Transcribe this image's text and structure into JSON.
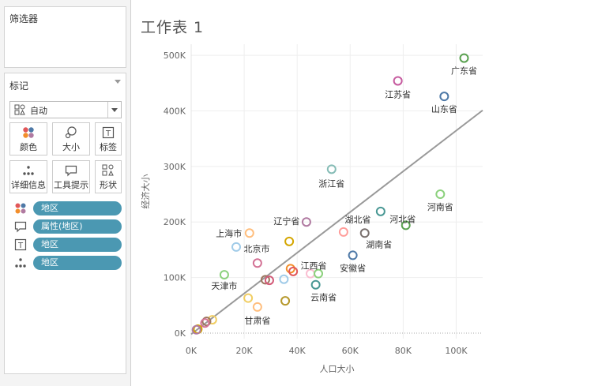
{
  "sheet_title": "工作表 1",
  "filters": {
    "title": "筛选器"
  },
  "marks": {
    "title": "标记",
    "mark_type": "自动",
    "buttons": {
      "color": "颜色",
      "size": "大小",
      "label": "标签",
      "detail": "详细信息",
      "tooltip": "工具提示",
      "shape": "形状"
    },
    "pills": [
      {
        "icon": "color-dots-icon",
        "label": "地区"
      },
      {
        "icon": "tooltip-icon",
        "label": "属性(地区)"
      },
      {
        "icon": "label-icon",
        "label": "地区"
      },
      {
        "icon": "detail-icon",
        "label": "地区"
      }
    ]
  },
  "chart_data": {
    "type": "scatter",
    "xlabel": "人口大小",
    "ylabel": "经济大小",
    "xlim": [
      0,
      110000
    ],
    "ylim": [
      -10000,
      520000
    ],
    "x_ticks": [
      {
        "value": 0,
        "label": "0K"
      },
      {
        "value": 20000,
        "label": "20K"
      },
      {
        "value": 40000,
        "label": "40K"
      },
      {
        "value": 60000,
        "label": "60K"
      },
      {
        "value": 80000,
        "label": "80K"
      },
      {
        "value": 100000,
        "label": "100K"
      }
    ],
    "y_ticks": [
      {
        "value": 0,
        "label": "0K"
      },
      {
        "value": 100000,
        "label": "100K"
      },
      {
        "value": 200000,
        "label": "200K"
      },
      {
        "value": 300000,
        "label": "300K"
      },
      {
        "value": 400000,
        "label": "400K"
      },
      {
        "value": 500000,
        "label": "500K"
      }
    ],
    "grid": true,
    "trend_line": {
      "x": [
        0,
        110000
      ],
      "y": [
        -2000,
        401000
      ],
      "color": "#999999"
    },
    "points": [
      {
        "x": 103000,
        "y": 495000,
        "label": "广东省",
        "color": "#59a14f"
      },
      {
        "x": 78000,
        "y": 454000,
        "label": "江苏省",
        "color": "#c65b9f"
      },
      {
        "x": 95500,
        "y": 426000,
        "label": "山东省",
        "color": "#4e79a7"
      },
      {
        "x": 53000,
        "y": 295000,
        "label": "浙江省",
        "color": "#86bcb6"
      },
      {
        "x": 94000,
        "y": 250000,
        "label": "河南省",
        "color": "#8cd17d"
      },
      {
        "x": 71500,
        "y": 219000,
        "label": "",
        "color": "#499894"
      },
      {
        "x": 81000,
        "y": 194000,
        "label": "河北省",
        "color": "#59a14f"
      },
      {
        "x": 43500,
        "y": 200000,
        "label": "辽宁省",
        "color": "#b07aa1"
      },
      {
        "x": 57500,
        "y": 182000,
        "label": "湖北省",
        "color": "#ff9d9a"
      },
      {
        "x": 65500,
        "y": 180000,
        "label": "湖南省",
        "color": "#79706e"
      },
      {
        "x": 22000,
        "y": 180000,
        "label": "上海市",
        "color": "#ffbe7d"
      },
      {
        "x": 17000,
        "y": 155000,
        "label": "北京市",
        "color": "#a0cbe8"
      },
      {
        "x": 37000,
        "y": 165000,
        "label": "",
        "color": "#d4a600"
      },
      {
        "x": 25000,
        "y": 126000,
        "label": "",
        "color": "#d37295"
      },
      {
        "x": 61000,
        "y": 140000,
        "label": "安徽省",
        "color": "#4e79a7"
      },
      {
        "x": 12500,
        "y": 105000,
        "label": "天津市",
        "color": "#8cd17d"
      },
      {
        "x": 37500,
        "y": 116000,
        "label": "",
        "color": "#f28e2b"
      },
      {
        "x": 38500,
        "y": 111000,
        "label": "",
        "color": "#e15759"
      },
      {
        "x": 45000,
        "y": 107000,
        "label": "江西省",
        "color": "#fabfd2"
      },
      {
        "x": 48000,
        "y": 107000,
        "label": "",
        "color": "#8cd17d"
      },
      {
        "x": 35000,
        "y": 97000,
        "label": "",
        "color": "#a0cbe8"
      },
      {
        "x": 28000,
        "y": 96000,
        "label": "",
        "color": "#9d7660"
      },
      {
        "x": 29500,
        "y": 95000,
        "label": "",
        "color": "#d35c79"
      },
      {
        "x": 47000,
        "y": 87000,
        "label": "云南省",
        "color": "#499894"
      },
      {
        "x": 21500,
        "y": 63000,
        "label": "",
        "color": "#f1ce63"
      },
      {
        "x": 35500,
        "y": 58000,
        "label": "",
        "color": "#b6992d"
      },
      {
        "x": 25000,
        "y": 47000,
        "label": "甘肃省",
        "color": "#ffbe7d"
      },
      {
        "x": 8000,
        "y": 24000,
        "label": "",
        "color": "#f1ce63"
      },
      {
        "x": 5800,
        "y": 21000,
        "label": "",
        "color": "#9d7660"
      },
      {
        "x": 5200,
        "y": 18000,
        "label": "",
        "color": "#d37295"
      },
      {
        "x": 2500,
        "y": 7000,
        "label": "",
        "color": "#d4a600"
      },
      {
        "x": 2000,
        "y": 6000,
        "label": "",
        "color": "#b07aa1"
      }
    ]
  }
}
